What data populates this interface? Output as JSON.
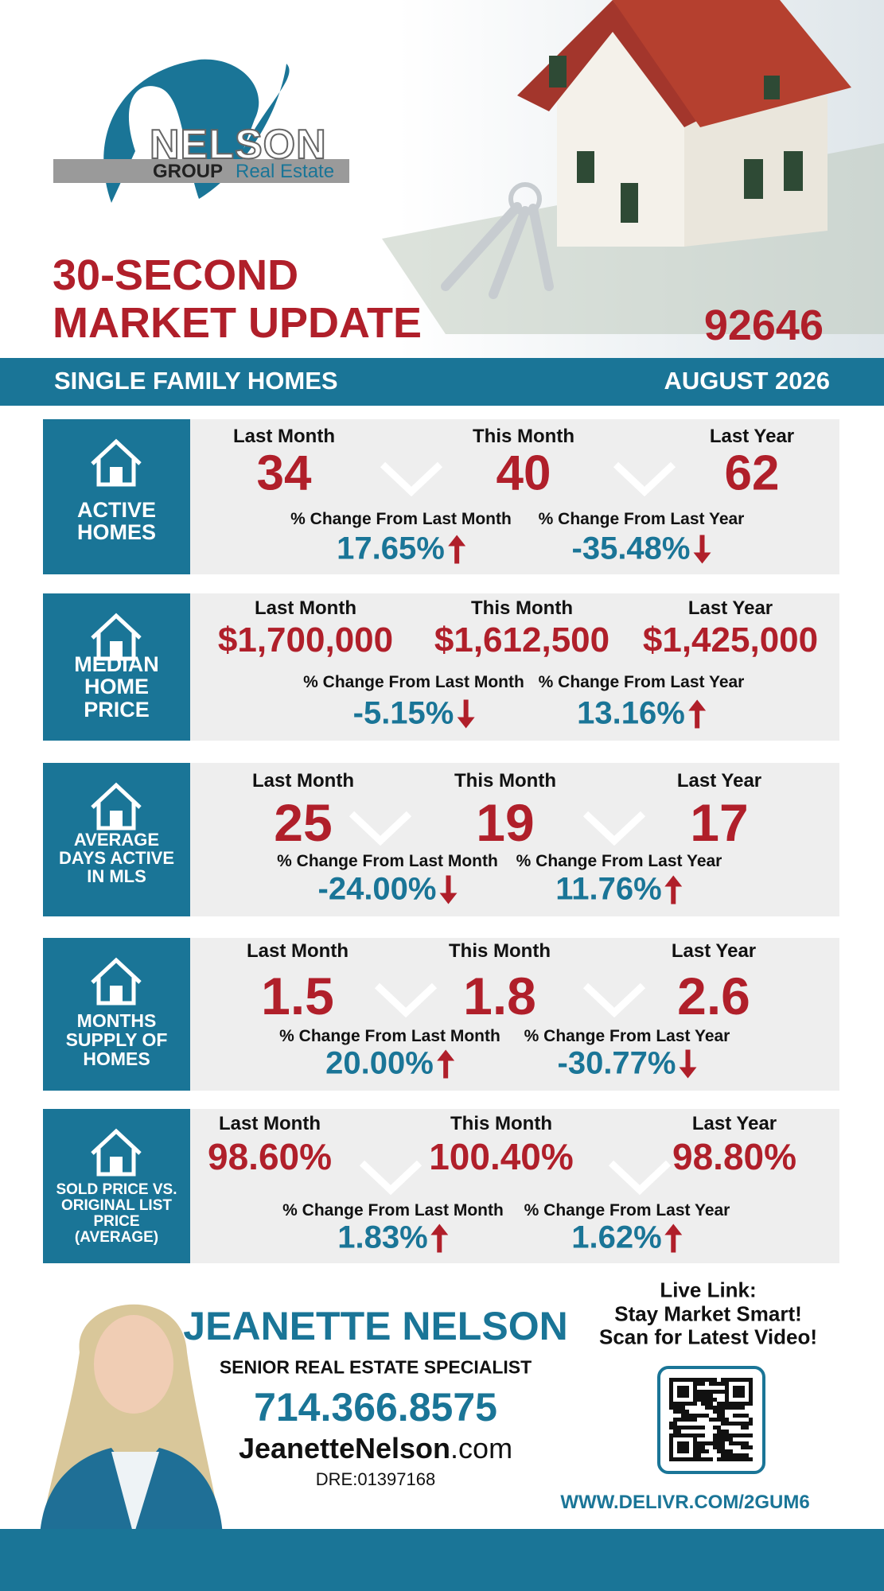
{
  "header": {
    "brand": "NELSON",
    "brand_group": "GROUP",
    "brand_real_estate": "Real Estate",
    "title_line_1": "30-SECOND",
    "title_line_2": "MARKET UPDATE",
    "zip": "92646",
    "category": "SINGLE FAMILY HOMES",
    "period": "AUGUST 2026"
  },
  "column_labels": [
    "Last Month",
    "This Month",
    "Last Year"
  ],
  "change_labels": [
    "% Change From Last Month",
    "% Change From Last Year"
  ],
  "metrics": [
    {
      "label": "ACTIVE HOMES",
      "values": [
        "34",
        "40",
        "62"
      ],
      "changes": [
        "17.65%",
        "-35.48%"
      ]
    },
    {
      "label": "MEDIAN HOME PRICE",
      "values": [
        "$1,700,000",
        "$1,612,500",
        "$1,425,000"
      ],
      "changes": [
        "-5.15%",
        "13.16%"
      ]
    },
    {
      "label": "AVERAGE DAYS ACTIVE IN MLS",
      "values": [
        "25",
        "19",
        "17"
      ],
      "changes": [
        "-24.00%",
        "11.76%"
      ]
    },
    {
      "label": "MONTHS SUPPLY OF HOMES",
      "values": [
        "1.5",
        "1.8",
        "2.6"
      ],
      "changes": [
        "20.00%",
        "-30.77%"
      ]
    },
    {
      "label": "SOLD PRICE VS. ORIGINAL LIST PRICE (AVERAGE)",
      "values": [
        "98.60%",
        "100.40%",
        "98.80%"
      ],
      "changes": [
        "1.83%",
        "1.62%"
      ]
    }
  ],
  "footer": {
    "name": "JEANETTE NELSON",
    "role": "SENIOR REAL ESTATE SPECIALIST",
    "phone": "714.366.8575",
    "website_bold": "JeanetteNelson",
    "website_rest": ".com",
    "license": "DRE:01397168",
    "live_link": [
      "Live Link:",
      "Stay Market Smart!",
      "Scan for Latest Video!"
    ],
    "url": "WWW.DELIVR.COM/2GUM6"
  }
}
